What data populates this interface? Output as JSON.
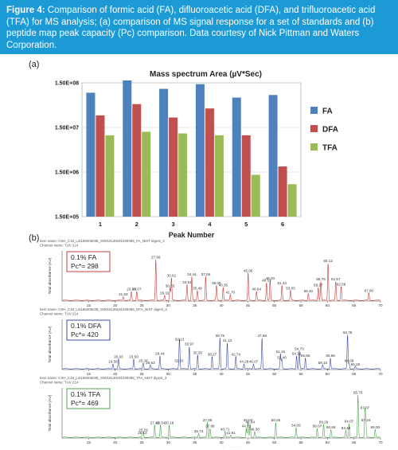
{
  "caption": {
    "label": "Figure 4:",
    "text": "Comparison of formic acid (FA), difluoroacetic acid (DFA), and trifluoroacetic acid (TFA) for MS analysis; (a) comparison of MS signal response for a set of standards and (b) peptide map peak capacity (Pc) comparison. Data courtesy of Nick Pittman and Waters Corporation."
  },
  "panel_a_label": "(a)",
  "panel_b_label": "(b)",
  "colors": {
    "FA": "#4f81bd",
    "DFA": "#c0504d",
    "TFA": "#9bbb59",
    "fa_trace": "#c22b2b",
    "dfa_trace": "#2b3a9a",
    "tfa_trace": "#3f9a3f",
    "caption_bg": "#1c9ad6"
  },
  "chart_data": [
    {
      "type": "bar",
      "title": "Mass spectrum Area (µV*Sec)",
      "xlabel": "Peak Number",
      "ylabel": "",
      "yscale": "log",
      "ylim": [
        150000,
        150000000
      ],
      "yticks": [
        "1.50E+05",
        "1.50E+06",
        "1.50E+07",
        "1.50E+08"
      ],
      "categories": [
        "1",
        "2",
        "3",
        "4",
        "5",
        "6"
      ],
      "series": [
        {
          "name": "FA",
          "values": [
            90000000,
            170000000,
            110000000,
            140000000,
            70000000,
            80000000
          ]
        },
        {
          "name": "DFA",
          "values": [
            28000000,
            50000000,
            25000000,
            40000000,
            10000000,
            2000000
          ]
        },
        {
          "name": "TFA",
          "values": [
            10000000,
            12000000,
            11000000,
            10000000,
            1300000,
            800000
          ]
        }
      ],
      "legend": "right"
    },
    {
      "type": "line",
      "item_header": "Item name: CSH_C18_Lot186006038_SN015139191039396_FA_NIST digest_3",
      "channel_header": "Channel name: TUV 214",
      "box_label": "0.1% FA",
      "pc_label": "Pc*= 298",
      "ylabel": "Total absorbance (AU)",
      "xlim": [
        10,
        70
      ],
      "xticks": [
        "15",
        "20",
        "25",
        "30",
        "35",
        "40",
        "45",
        "50",
        "55",
        "60",
        "65",
        "70"
      ],
      "peaks": [
        {
          "x": 21.53,
          "label": "21.53",
          "y": 0.08
        },
        {
          "x": 23.05,
          "label": "23.05",
          "y": 0.18
        },
        {
          "x": 24.07,
          "label": "24.07",
          "y": 0.18
        },
        {
          "x": 27.66,
          "label": "27.66",
          "y": 0.82
        },
        {
          "x": 29.32,
          "label": "29.32",
          "y": 0.1
        },
        {
          "x": 30.33,
          "label": "30.33",
          "y": 0.25
        },
        {
          "x": 30.61,
          "label": "30.61",
          "y": 0.45
        },
        {
          "x": 33.54,
          "label": "33.54",
          "y": 0.32
        },
        {
          "x": 34.44,
          "label": "34.44",
          "y": 0.48
        },
        {
          "x": 35.49,
          "label": "35.49",
          "y": 0.2
        },
        {
          "x": 37.06,
          "label": "37.06",
          "y": 0.48
        },
        {
          "x": 39.08,
          "label": "39.08",
          "y": 0.3
        },
        {
          "x": 40.35,
          "label": "40.35",
          "y": 0.26
        },
        {
          "x": 41.7,
          "label": "41.70",
          "y": 0.12
        },
        {
          "x": 45.06,
          "label": "45.06",
          "y": 0.55
        },
        {
          "x": 46.64,
          "label": "46.64",
          "y": 0.18
        },
        {
          "x": 48.53,
          "label": "48.53",
          "y": 0.36
        },
        {
          "x": 49.2,
          "label": "49.20",
          "y": 0.4
        },
        {
          "x": 51.43,
          "label": "51.43",
          "y": 0.3
        },
        {
          "x": 53.05,
          "label": "53.05",
          "y": 0.2
        },
        {
          "x": 56.4,
          "label": "56.40",
          "y": 0.14
        },
        {
          "x": 58.27,
          "label": "58.27",
          "y": 0.26
        },
        {
          "x": 58.76,
          "label": "58.76",
          "y": 0.38
        },
        {
          "x": 60.12,
          "label": "60.12",
          "y": 0.75
        },
        {
          "x": 61.57,
          "label": "61.57",
          "y": 0.38
        },
        {
          "x": 62.58,
          "label": "62.58",
          "y": 0.28
        },
        {
          "x": 67.8,
          "label": "67.80",
          "y": 0.15
        }
      ]
    },
    {
      "type": "line",
      "item_header": "Item name: CSH_C18_Lot186006038_SN015139191039396_DFA_NIST digest_3",
      "channel_header": "Channel name: TUV 214",
      "box_label": "0.1% DFA",
      "pc_label": "Pc*= 420",
      "ylabel": "Total absorbance (AU)",
      "xlim": [
        10,
        70
      ],
      "xticks": [
        "15",
        "20",
        "25",
        "30",
        "35",
        "40",
        "45",
        "50",
        "55",
        "60",
        "65",
        "70"
      ],
      "peaks": [
        {
          "x": 19.58,
          "label": "19.58",
          "y": 0.1
        },
        {
          "x": 20.63,
          "label": "20.63",
          "y": 0.2
        },
        {
          "x": 23.5,
          "label": "23.50",
          "y": 0.2
        },
        {
          "x": 25.28,
          "label": "25.28",
          "y": 0.12
        },
        {
          "x": 26.63,
          "label": "26.63",
          "y": 0.08
        },
        {
          "x": 28.44,
          "label": "28.44",
          "y": 0.26
        },
        {
          "x": 32.03,
          "label": "32.03",
          "y": 0.12
        },
        {
          "x": 32.13,
          "label": "32.13",
          "y": 0.55
        },
        {
          "x": 33.97,
          "label": "33.97",
          "y": 0.45
        },
        {
          "x": 35.55,
          "label": "35.55",
          "y": 0.28
        },
        {
          "x": 38.27,
          "label": "38.27",
          "y": 0.25
        },
        {
          "x": 39.75,
          "label": "39.75",
          "y": 0.62
        },
        {
          "x": 41.13,
          "label": "41.13",
          "y": 0.52
        },
        {
          "x": 42.74,
          "label": "42.74",
          "y": 0.25
        },
        {
          "x": 44.28,
          "label": "44.28",
          "y": 0.1
        },
        {
          "x": 46.07,
          "label": "46.07",
          "y": 0.1
        },
        {
          "x": 47.68,
          "label": "47.68",
          "y": 0.62
        },
        {
          "x": 51.15,
          "label": "51.15",
          "y": 0.3
        },
        {
          "x": 51.4,
          "label": "51.40",
          "y": 0.18
        },
        {
          "x": 54.19,
          "label": "54.19",
          "y": 0.26
        },
        {
          "x": 54.7,
          "label": "54.70",
          "y": 0.36
        },
        {
          "x": 55.85,
          "label": "55.85",
          "y": 0.22
        },
        {
          "x": 59.1,
          "label": "59.10",
          "y": 0.08
        },
        {
          "x": 60.56,
          "label": "60.56",
          "y": 0.22
        },
        {
          "x": 63.79,
          "label": "63.79",
          "y": 0.68
        },
        {
          "x": 64.08,
          "label": "64.08",
          "y": 0.12
        },
        {
          "x": 65.26,
          "label": "65.26",
          "y": 0.05
        }
      ]
    },
    {
      "type": "line",
      "item_header": "Item name: CSH_C18_Lot186006038_SN015139191039396_TFA_NIST digest_3",
      "channel_header": "Channel name: TUV 214",
      "box_label": "0.1% TFA",
      "pc_label": "Pc*= 469",
      "ylabel": "Total absorbance (AU)",
      "xlabel": "Retention Time (min)",
      "xlim": [
        10,
        70
      ],
      "xticks": [
        "15",
        "20",
        "25",
        "30",
        "35",
        "40",
        "45",
        "50",
        "55",
        "60",
        "65",
        "70"
      ],
      "peaks": [
        {
          "x": 25.13,
          "label": "25.13",
          "y": 0.05
        },
        {
          "x": 25.29,
          "label": "25.29",
          "y": 0.1
        },
        {
          "x": 27.45,
          "label": "27.45",
          "y": 0.25
        },
        {
          "x": 28.54,
          "label": "28.54",
          "y": 0.25
        },
        {
          "x": 30.18,
          "label": "30.18",
          "y": 0.25
        },
        {
          "x": 35.73,
          "label": "35.73",
          "y": 0.08
        },
        {
          "x": 37.38,
          "label": "37.38",
          "y": 0.3
        },
        {
          "x": 37.88,
          "label": "37.88",
          "y": 0.18
        },
        {
          "x": 40.71,
          "label": "40.71",
          "y": 0.12
        },
        {
          "x": 41.81,
          "label": "41.81",
          "y": 0.05
        },
        {
          "x": 44.71,
          "label": "44.71",
          "y": 0.18
        },
        {
          "x": 45.03,
          "label": "45.03",
          "y": 0.3
        },
        {
          "x": 45.44,
          "label": "45.44",
          "y": 0.26
        },
        {
          "x": 46.3,
          "label": "46.30",
          "y": 0.12
        },
        {
          "x": 50.26,
          "label": "50.26",
          "y": 0.3
        },
        {
          "x": 54.09,
          "label": "54.09",
          "y": 0.2
        },
        {
          "x": 58.07,
          "label": "58.07",
          "y": 0.18
        },
        {
          "x": 59.28,
          "label": "59.28",
          "y": 0.26
        },
        {
          "x": 60.66,
          "label": "60.66",
          "y": 0.16
        },
        {
          "x": 63.48,
          "label": "63.48",
          "y": 0.14
        },
        {
          "x": 64.07,
          "label": "64.07",
          "y": 0.28
        },
        {
          "x": 65.76,
          "label": "65.76",
          "y": 0.85
        },
        {
          "x": 67.07,
          "label": "67.07",
          "y": 0.55
        },
        {
          "x": 67.24,
          "label": "67.24",
          "y": 0.3
        },
        {
          "x": 69.0,
          "label": "69.00",
          "y": 0.16
        }
      ]
    }
  ]
}
